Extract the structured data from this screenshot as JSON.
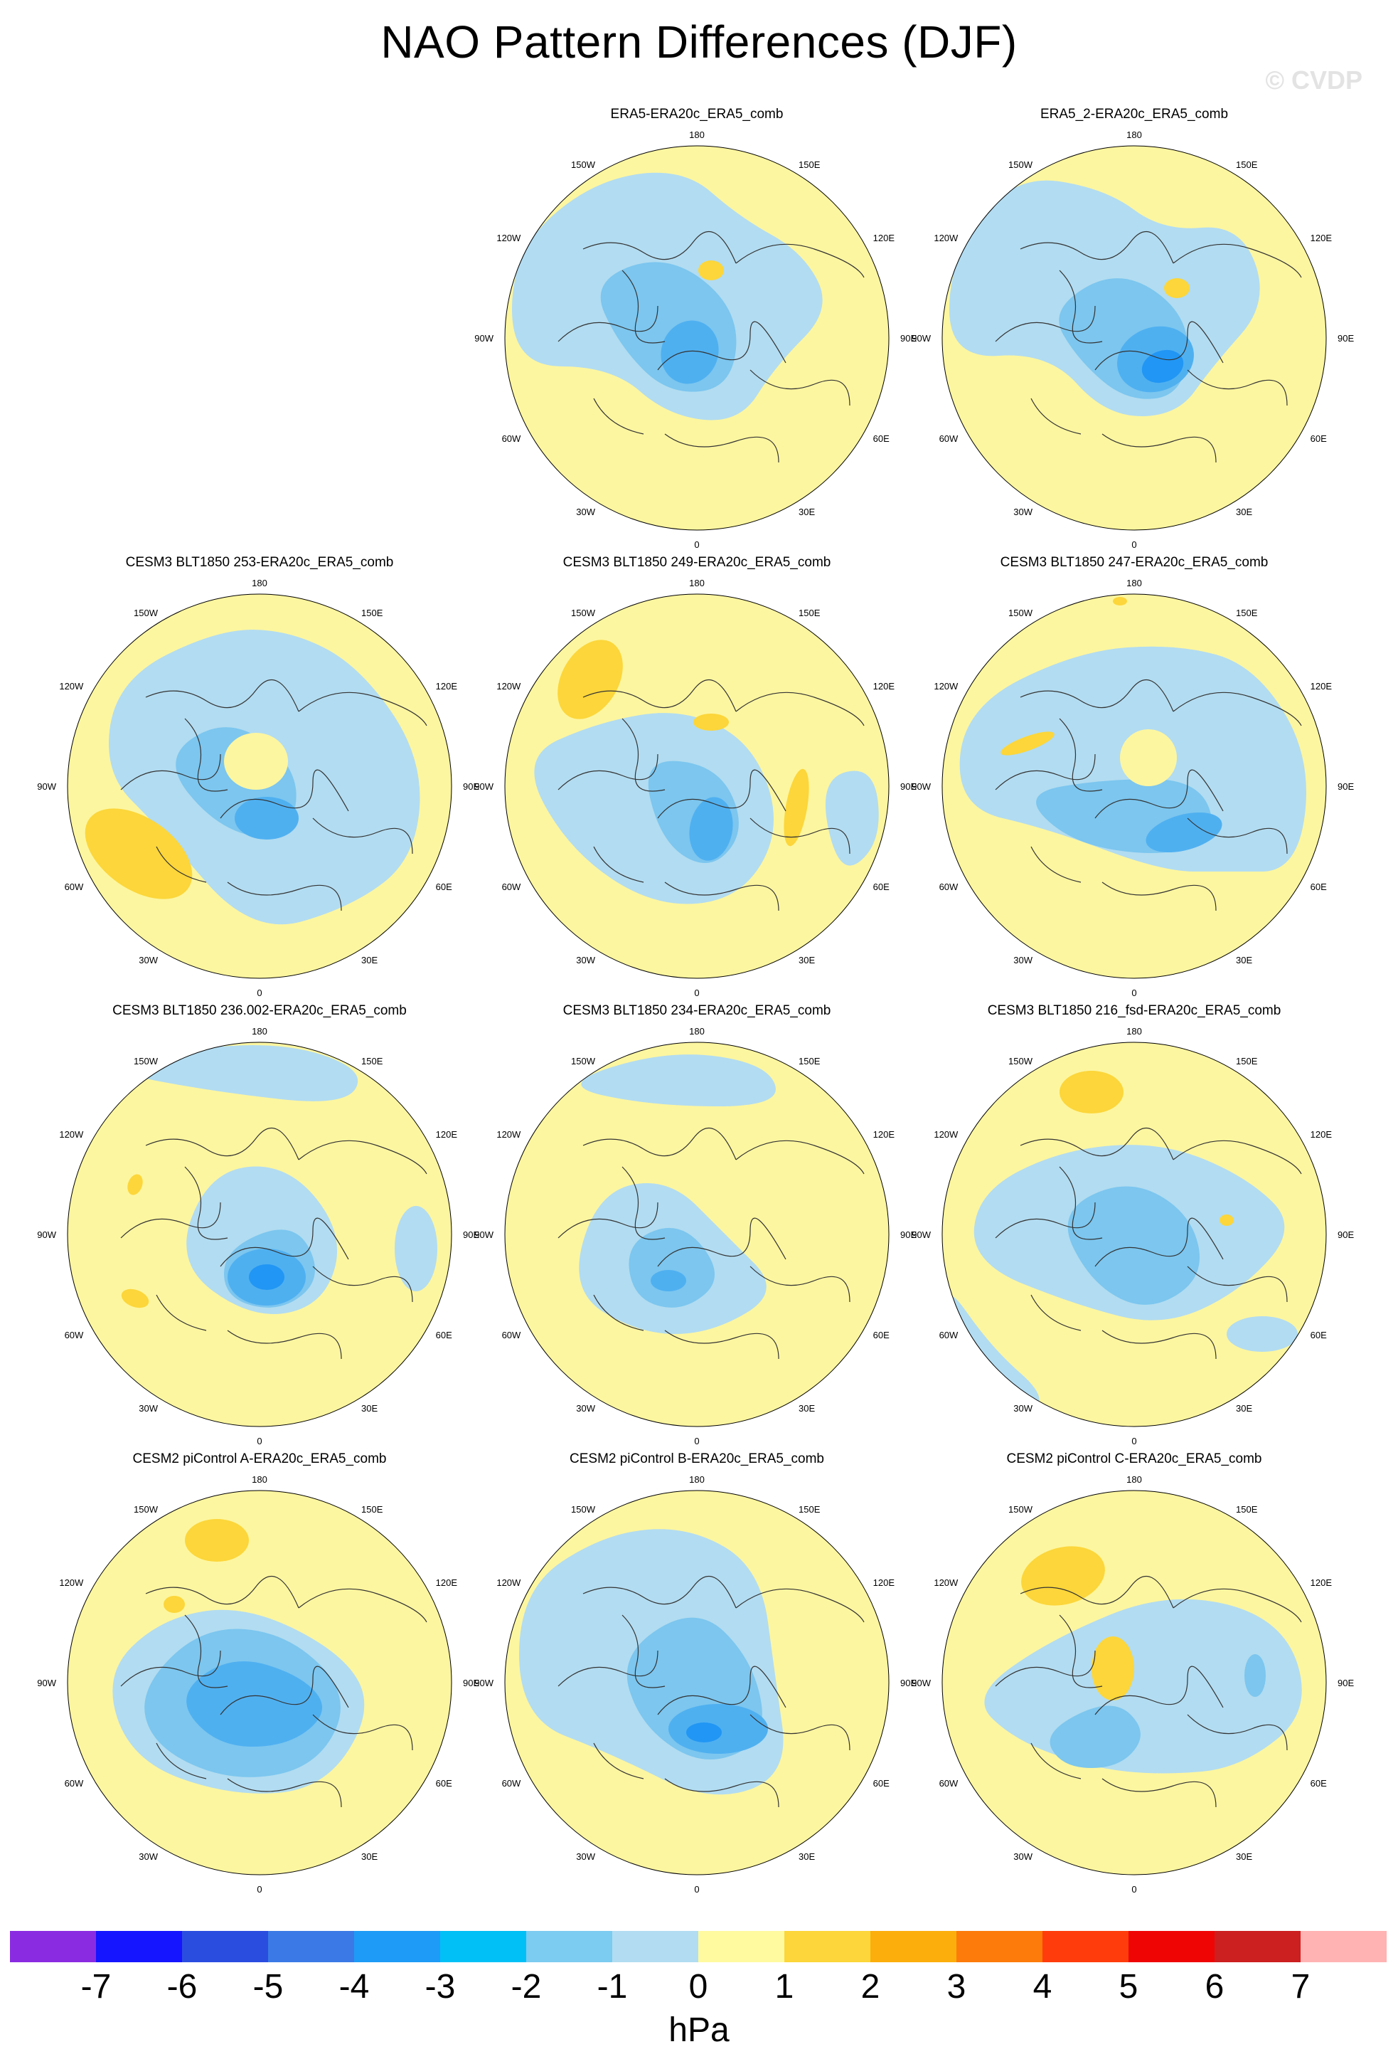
{
  "title": "NAO Pattern Differences (DJF)",
  "watermark": "© CVDP",
  "lon_labels": {
    "n": "180",
    "ne1": "150E",
    "ne2": "120E",
    "e": "90E",
    "se2": "60E",
    "se1": "30E",
    "s": "0",
    "sw1": "30W",
    "sw2": "60W",
    "w": "90W",
    "nw2": "120W",
    "nw1": "150W"
  },
  "colors": {
    "ocean_positive_0_1": "#fdf6a0",
    "neg_0_1": "#b2dcf1",
    "neg_1_2": "#7cc6ef",
    "neg_2_3": "#4fb0f0",
    "neg_3_4": "#2196f4",
    "pos_1_2": "#fcd63a"
  },
  "panels": [
    {
      "title": "ERA5-ERA20c_ERA5_comb",
      "pattern": "era5"
    },
    {
      "title": "ERA5_2-ERA20c_ERA5_comb",
      "pattern": "era5b"
    },
    {
      "title": "CESM3 BLT1850 253-ERA20c_ERA5_comb",
      "pattern": "p253"
    },
    {
      "title": "CESM3 BLT1850 249-ERA20c_ERA5_comb",
      "pattern": "p249"
    },
    {
      "title": "CESM3 BLT1850 247-ERA20c_ERA5_comb",
      "pattern": "p247"
    },
    {
      "title": "CESM3 BLT1850 236.002-ERA20c_ERA5_comb",
      "pattern": "p236"
    },
    {
      "title": "CESM3 BLT1850 234-ERA20c_ERA5_comb",
      "pattern": "p234"
    },
    {
      "title": "CESM3 BLT1850 216_fsd-ERA20c_ERA5_comb",
      "pattern": "p216"
    },
    {
      "title": "CESM2 piControl A-ERA20c_ERA5_comb",
      "pattern": "pa"
    },
    {
      "title": "CESM2 piControl B-ERA20c_ERA5_comb",
      "pattern": "pb"
    },
    {
      "title": "CESM2 piControl C-ERA20c_ERA5_comb",
      "pattern": "pc"
    }
  ],
  "colorbar": {
    "unit": "hPa",
    "tick_labels": [
      "-7",
      "-6",
      "-5",
      "-4",
      "-3",
      "-2",
      "-1",
      "0",
      "1",
      "2",
      "3",
      "4",
      "5",
      "6",
      "7"
    ],
    "colors": [
      "#8a2be2",
      "#1515ff",
      "#2a4de0",
      "#3b7ae6",
      "#1e9bf6",
      "#00c0f6",
      "#7ccbf0",
      "#b2dcf1",
      "#fffaa0",
      "#fcd63a",
      "#fcae0c",
      "#fc7b0a",
      "#ff3d0c",
      "#f00505",
      "#cc1f1f",
      "#ffb3b3"
    ]
  }
}
